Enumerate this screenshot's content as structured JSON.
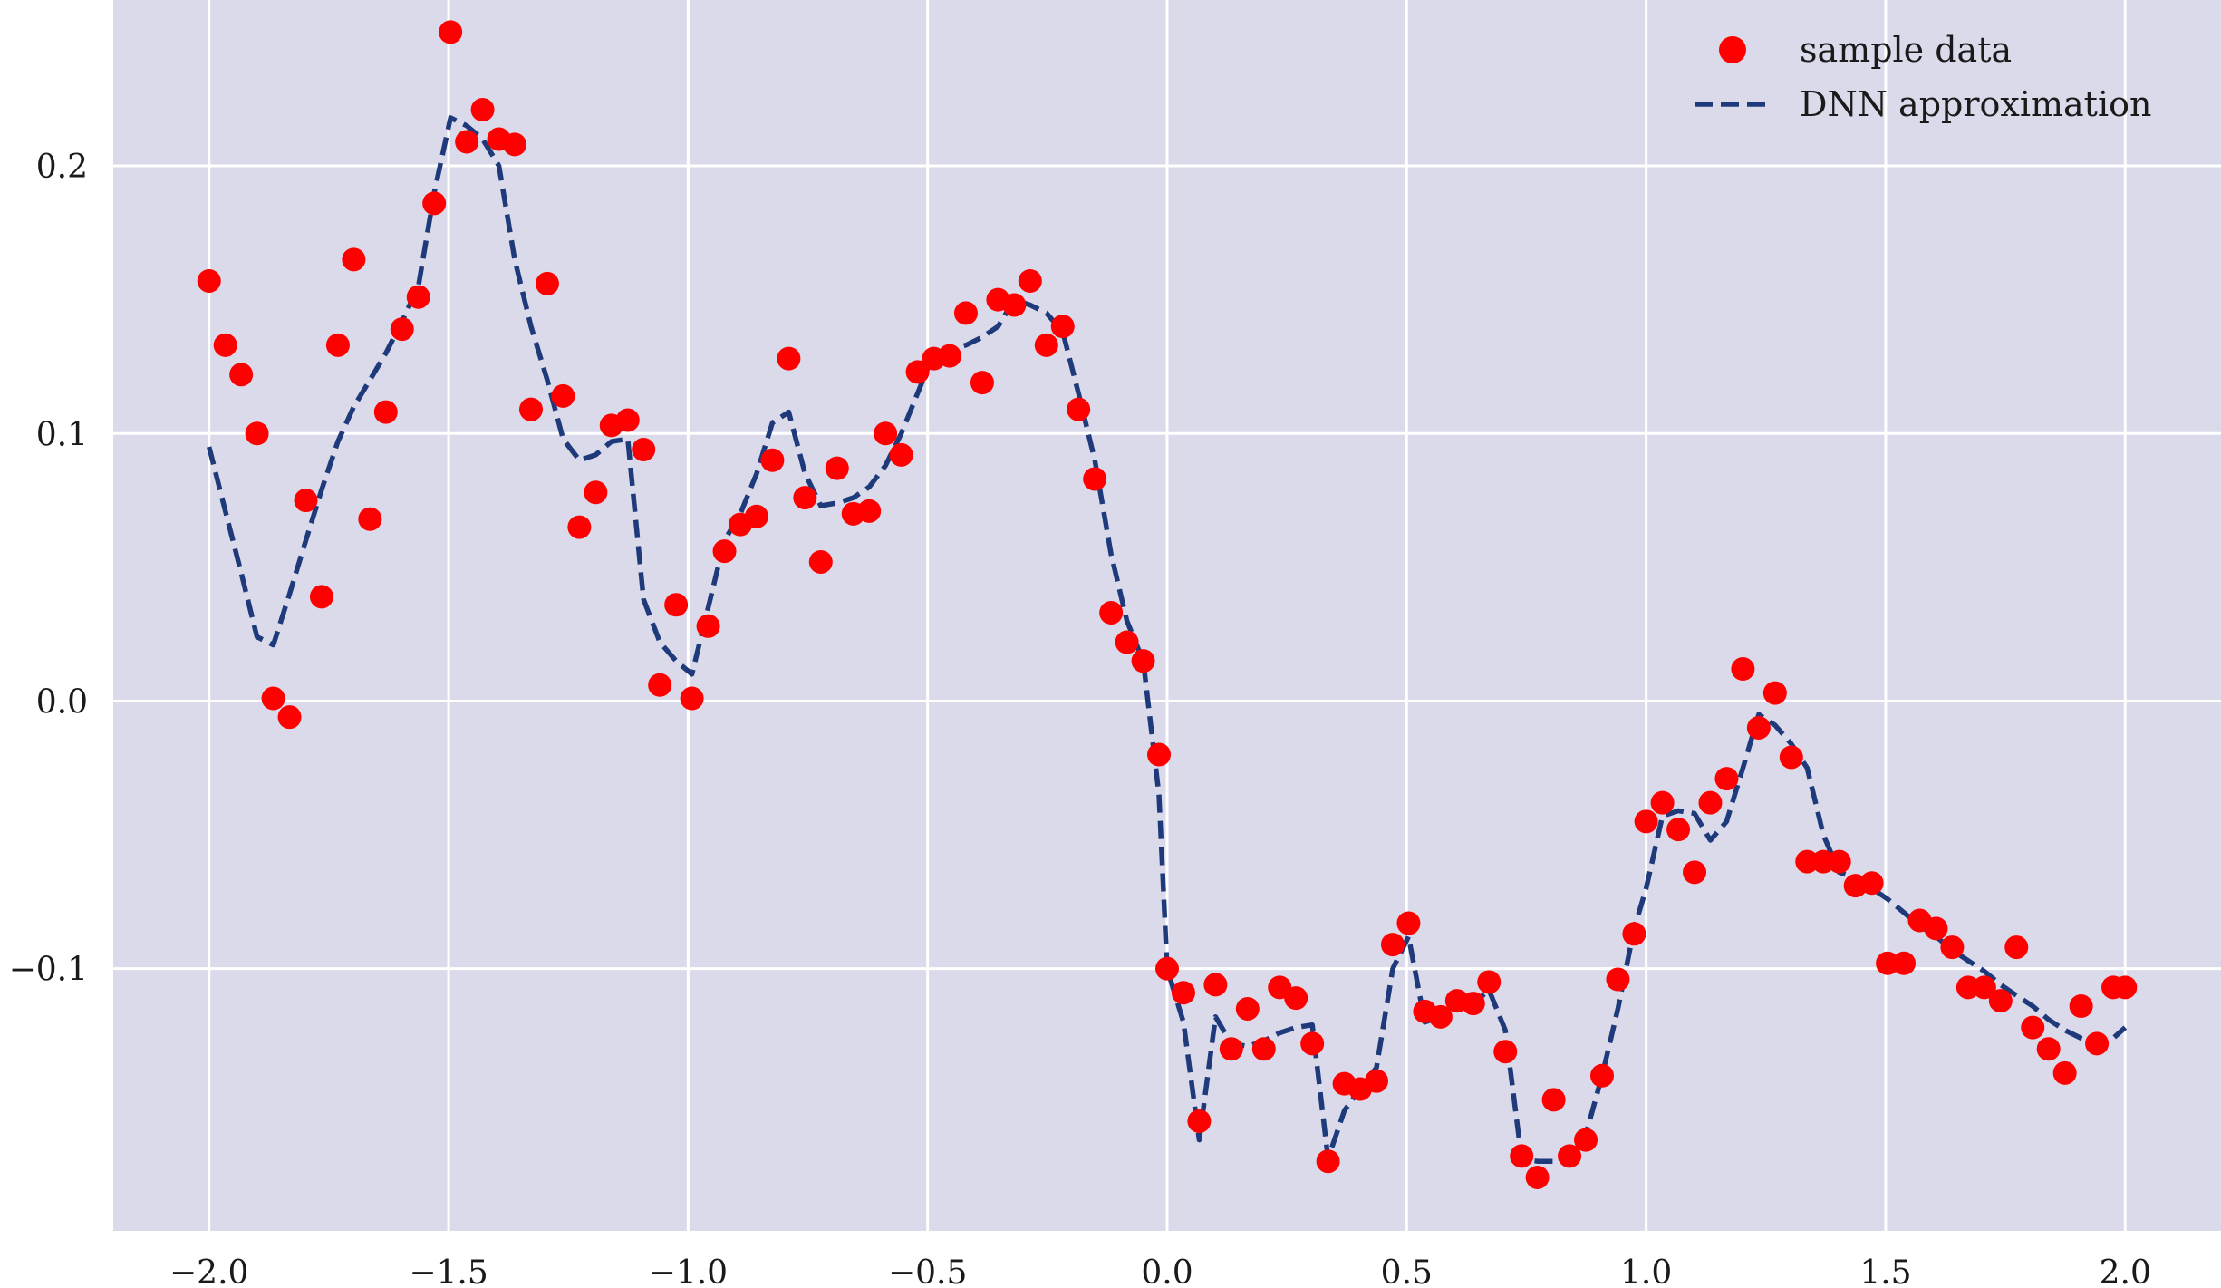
{
  "chart_data": {
    "type": "scatter",
    "xlim": [
      -2.2,
      2.2
    ],
    "ylim": [
      -0.198,
      0.262
    ],
    "grid": true,
    "legend_position": "top-right",
    "background_color": "#dadaea",
    "grid_color": "#ffffff",
    "xticks": [
      -2.0,
      -1.5,
      -1.0,
      -0.5,
      0.0,
      0.5,
      1.0,
      1.5,
      2.0
    ],
    "xtick_labels": [
      "−2.0",
      "−1.5",
      "−1.0",
      "−0.5",
      "0.0",
      "0.5",
      "1.0",
      "1.5",
      "2.0"
    ],
    "yticks": [
      -0.1,
      0.0,
      0.1,
      0.2
    ],
    "ytick_labels": [
      "−0.1",
      "0.0",
      "0.1",
      "0.2"
    ],
    "series": [
      {
        "name": "sample data",
        "kind": "scatter",
        "color": "#ff0000",
        "x": [
          -2.0,
          -1.966,
          -1.933,
          -1.9,
          -1.866,
          -1.832,
          -1.798,
          -1.765,
          -1.731,
          -1.698,
          -1.664,
          -1.631,
          -1.597,
          -1.563,
          -1.53,
          -1.496,
          -1.462,
          -1.429,
          -1.395,
          -1.362,
          -1.328,
          -1.294,
          -1.261,
          -1.227,
          -1.193,
          -1.16,
          -1.126,
          -1.093,
          -1.059,
          -1.025,
          -0.992,
          -0.958,
          -0.924,
          -0.891,
          -0.857,
          -0.824,
          -0.79,
          -0.756,
          -0.723,
          -0.689,
          -0.655,
          -0.622,
          -0.588,
          -0.555,
          -0.521,
          -0.487,
          -0.454,
          -0.42,
          -0.386,
          -0.353,
          -0.319,
          -0.286,
          -0.252,
          -0.218,
          -0.185,
          -0.151,
          -0.117,
          -0.084,
          -0.05,
          -0.017,
          0.0,
          0.034,
          0.067,
          0.101,
          0.134,
          0.168,
          0.202,
          0.235,
          0.269,
          0.303,
          0.336,
          0.37,
          0.403,
          0.437,
          0.471,
          0.504,
          0.538,
          0.571,
          0.605,
          0.639,
          0.672,
          0.706,
          0.74,
          0.773,
          0.807,
          0.84,
          0.874,
          0.908,
          0.941,
          0.975,
          1.0,
          1.034,
          1.067,
          1.101,
          1.134,
          1.168,
          1.202,
          1.235,
          1.269,
          1.303,
          1.336,
          1.37,
          1.403,
          1.437,
          1.471,
          1.504,
          1.538,
          1.571,
          1.605,
          1.639,
          1.672,
          1.706,
          1.74,
          1.773,
          1.807,
          1.84,
          1.874,
          1.908,
          1.941,
          1.975,
          2.0
        ],
        "y": [
          0.157,
          0.133,
          0.122,
          0.1,
          0.001,
          -0.006,
          0.075,
          0.039,
          0.133,
          0.165,
          0.068,
          0.108,
          0.139,
          0.151,
          0.186,
          0.25,
          0.209,
          0.221,
          0.21,
          0.208,
          0.109,
          0.156,
          0.114,
          0.065,
          0.078,
          0.103,
          0.105,
          0.094,
          0.006,
          0.036,
          0.001,
          0.028,
          0.056,
          0.066,
          0.069,
          0.09,
          0.128,
          0.076,
          0.052,
          0.087,
          0.07,
          0.071,
          0.1,
          0.092,
          0.123,
          0.128,
          0.129,
          0.145,
          0.119,
          0.15,
          0.148,
          0.157,
          0.133,
          0.14,
          0.109,
          0.083,
          0.033,
          0.022,
          0.015,
          -0.02,
          -0.1,
          -0.109,
          -0.157,
          -0.106,
          -0.13,
          -0.115,
          -0.13,
          -0.107,
          -0.111,
          -0.128,
          -0.172,
          -0.143,
          -0.145,
          -0.142,
          -0.091,
          -0.083,
          -0.116,
          -0.118,
          -0.112,
          -0.113,
          -0.105,
          -0.131,
          -0.17,
          -0.178,
          -0.149,
          -0.17,
          -0.164,
          -0.14,
          -0.104,
          -0.087,
          -0.045,
          -0.038,
          -0.048,
          -0.064,
          -0.038,
          -0.029,
          0.012,
          -0.01,
          0.003,
          -0.021,
          -0.06,
          -0.06,
          -0.06,
          -0.069,
          -0.068,
          -0.098,
          -0.098,
          -0.082,
          -0.085,
          -0.092,
          -0.107,
          -0.107,
          -0.112,
          -0.092,
          -0.122,
          -0.13,
          -0.139,
          -0.114,
          -0.128,
          -0.107,
          -0.107
        ]
      },
      {
        "name": "DNN approximation",
        "kind": "line",
        "style": "dashed",
        "color": "#1f3a7a",
        "x": [
          -2.0,
          -1.966,
          -1.933,
          -1.9,
          -1.866,
          -1.832,
          -1.798,
          -1.765,
          -1.731,
          -1.698,
          -1.664,
          -1.631,
          -1.597,
          -1.563,
          -1.53,
          -1.496,
          -1.462,
          -1.429,
          -1.395,
          -1.362,
          -1.328,
          -1.294,
          -1.261,
          -1.227,
          -1.193,
          -1.16,
          -1.126,
          -1.093,
          -1.059,
          -1.025,
          -0.992,
          -0.958,
          -0.924,
          -0.891,
          -0.857,
          -0.824,
          -0.79,
          -0.756,
          -0.723,
          -0.689,
          -0.655,
          -0.622,
          -0.588,
          -0.555,
          -0.521,
          -0.487,
          -0.454,
          -0.42,
          -0.386,
          -0.353,
          -0.319,
          -0.286,
          -0.252,
          -0.218,
          -0.185,
          -0.151,
          -0.117,
          -0.084,
          -0.05,
          -0.017,
          0.0,
          0.034,
          0.067,
          0.101,
          0.134,
          0.168,
          0.202,
          0.235,
          0.269,
          0.303,
          0.336,
          0.37,
          0.403,
          0.437,
          0.471,
          0.504,
          0.538,
          0.571,
          0.605,
          0.639,
          0.672,
          0.706,
          0.74,
          0.773,
          0.807,
          0.84,
          0.874,
          0.908,
          0.941,
          0.975,
          1.0,
          1.034,
          1.067,
          1.101,
          1.134,
          1.168,
          1.202,
          1.235,
          1.269,
          1.303,
          1.336,
          1.37,
          1.403,
          1.437,
          1.471,
          1.504,
          1.538,
          1.571,
          1.605,
          1.639,
          1.672,
          1.706,
          1.74,
          1.773,
          1.807,
          1.84,
          1.874,
          1.908,
          1.941,
          1.975,
          2.0
        ],
        "y": [
          0.095,
          0.071,
          0.048,
          0.024,
          0.021,
          0.04,
          0.06,
          0.079,
          0.097,
          0.11,
          0.12,
          0.13,
          0.142,
          0.155,
          0.19,
          0.218,
          0.215,
          0.21,
          0.2,
          0.165,
          0.14,
          0.12,
          0.098,
          0.09,
          0.092,
          0.097,
          0.098,
          0.038,
          0.022,
          0.015,
          0.01,
          0.035,
          0.06,
          0.07,
          0.085,
          0.104,
          0.108,
          0.085,
          0.073,
          0.074,
          0.076,
          0.08,
          0.088,
          0.1,
          0.115,
          0.13,
          0.131,
          0.133,
          0.136,
          0.14,
          0.15,
          0.148,
          0.145,
          0.138,
          0.115,
          0.09,
          0.055,
          0.03,
          0.015,
          -0.035,
          -0.1,
          -0.12,
          -0.164,
          -0.118,
          -0.128,
          -0.129,
          -0.127,
          -0.124,
          -0.122,
          -0.121,
          -0.171,
          -0.153,
          -0.145,
          -0.137,
          -0.1,
          -0.088,
          -0.12,
          -0.118,
          -0.112,
          -0.113,
          -0.108,
          -0.123,
          -0.171,
          -0.172,
          -0.172,
          -0.17,
          -0.162,
          -0.14,
          -0.115,
          -0.085,
          -0.07,
          -0.043,
          -0.041,
          -0.042,
          -0.052,
          -0.045,
          -0.025,
          -0.005,
          -0.009,
          -0.016,
          -0.025,
          -0.05,
          -0.064,
          -0.066,
          -0.07,
          -0.074,
          -0.079,
          -0.084,
          -0.088,
          -0.093,
          -0.097,
          -0.101,
          -0.106,
          -0.11,
          -0.114,
          -0.119,
          -0.123,
          -0.126,
          -0.128,
          -0.126,
          -0.122
        ]
      }
    ]
  }
}
